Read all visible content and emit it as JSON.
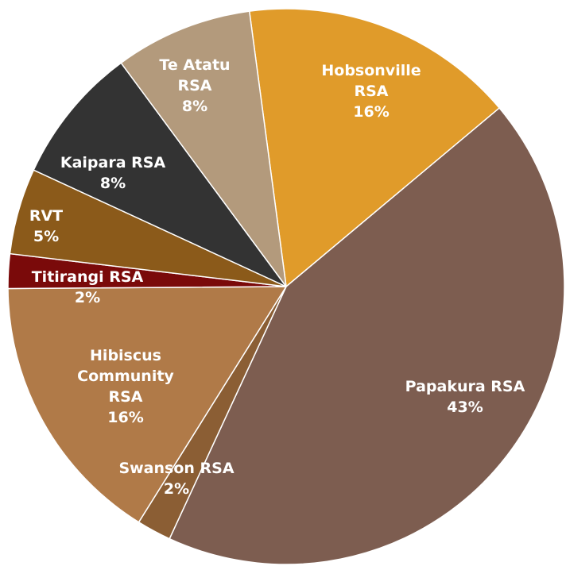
{
  "chart_data": {
    "type": "pie",
    "categories": [
      "Hobsonville RSA",
      "Papakura RSA",
      "Swanson RSA",
      "Hibiscus Community RSA",
      "Titirangi RSA",
      "RVT",
      "Kaipara RSA",
      "Te Atatu RSA"
    ],
    "values": [
      16,
      43,
      2,
      16,
      2,
      5,
      8,
      8
    ],
    "value_labels": [
      "16%",
      "43%",
      "2%",
      "16%",
      "2%",
      "5%",
      "8%",
      "8%"
    ],
    "colors": [
      "#e09b2a",
      "#7d5d50",
      "#8b5e34",
      "#b07a48",
      "#7a0a0a",
      "#8b5a1a",
      "#333333",
      "#b39a7c"
    ]
  }
}
